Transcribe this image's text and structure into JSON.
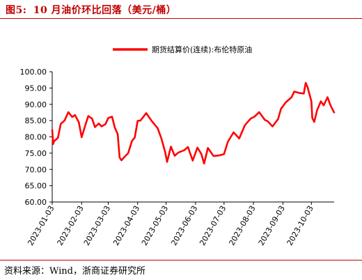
{
  "figure": {
    "label": "图5:",
    "title": "10 月油价环比回落（美元/桶）"
  },
  "source": "资料来源：Wind，浙商证券研究所",
  "colors": {
    "accent": "#c00000",
    "series": "#ff0000"
  },
  "chart_data": {
    "type": "line",
    "legend": {
      "position": "top-right",
      "entries": [
        "期货结算价(连续):布伦特原油"
      ]
    },
    "ylim": [
      60,
      100
    ],
    "yticks": [
      "100.00",
      "95.00",
      "90.00",
      "85.00",
      "80.00",
      "75.00",
      "70.00",
      "65.00",
      "60.00"
    ],
    "xlim": [
      "2023-01-03",
      "2023-10-27"
    ],
    "xticks": [
      "2023-01-03",
      "2023-02-03",
      "2023-03-03",
      "2023-04-03",
      "2023-05-03",
      "2023-06-03",
      "2023-07-03",
      "2023-08-03",
      "2023-09-03",
      "2023-10-03"
    ],
    "grid": false,
    "series": [
      {
        "name": "期货结算价(连续):布伦特原油",
        "x": [
          "2023-01-03",
          "2023-01-04",
          "2023-01-05",
          "2023-01-09",
          "2023-01-12",
          "2023-01-16",
          "2023-01-20",
          "2023-01-24",
          "2023-01-27",
          "2023-01-31",
          "2023-02-03",
          "2023-02-07",
          "2023-02-10",
          "2023-02-14",
          "2023-02-17",
          "2023-02-21",
          "2023-02-24",
          "2023-02-28",
          "2023-03-03",
          "2023-03-07",
          "2023-03-10",
          "2023-03-13",
          "2023-03-15",
          "2023-03-17",
          "2023-03-20",
          "2023-03-24",
          "2023-03-28",
          "2023-03-31",
          "2023-04-03",
          "2023-04-06",
          "2023-04-12",
          "2023-04-18",
          "2023-04-24",
          "2023-04-28",
          "2023-05-02",
          "2023-05-04",
          "2023-05-08",
          "2023-05-12",
          "2023-05-16",
          "2023-05-22",
          "2023-05-26",
          "2023-05-31",
          "2023-06-05",
          "2023-06-09",
          "2023-06-12",
          "2023-06-16",
          "2023-06-22",
          "2023-06-28",
          "2023-07-03",
          "2023-07-07",
          "2023-07-13",
          "2023-07-19",
          "2023-07-25",
          "2023-07-31",
          "2023-08-04",
          "2023-08-09",
          "2023-08-15",
          "2023-08-18",
          "2023-08-23",
          "2023-08-29",
          "2023-09-01",
          "2023-09-06",
          "2023-09-12",
          "2023-09-15",
          "2023-09-20",
          "2023-09-25",
          "2023-09-27",
          "2023-09-29",
          "2023-10-03",
          "2023-10-04",
          "2023-10-06",
          "2023-10-09",
          "2023-10-13",
          "2023-10-16",
          "2023-10-20",
          "2023-10-23",
          "2023-10-26",
          "2023-10-27"
        ],
        "values": [
          82.1,
          77.8,
          78.7,
          79.7,
          84.0,
          85.0,
          87.6,
          86.1,
          86.7,
          84.5,
          79.9,
          83.7,
          86.4,
          85.6,
          83.0,
          84.1,
          83.2,
          83.9,
          85.8,
          86.2,
          82.8,
          80.8,
          73.7,
          72.8,
          73.8,
          75.0,
          78.7,
          79.8,
          84.9,
          85.0,
          87.3,
          84.8,
          82.7,
          79.5,
          75.3,
          72.3,
          77.0,
          74.2,
          75.2,
          75.9,
          76.9,
          72.7,
          76.7,
          74.8,
          71.8,
          76.6,
          74.1,
          74.3,
          74.7,
          78.5,
          81.4,
          79.5,
          83.6,
          85.6,
          86.2,
          87.6,
          85.2,
          84.8,
          83.2,
          85.5,
          88.6,
          90.6,
          92.1,
          93.9,
          93.5,
          93.3,
          96.6,
          95.3,
          90.9,
          85.8,
          84.6,
          88.2,
          90.9,
          89.7,
          92.2,
          89.8,
          88.0,
          87.5
        ]
      }
    ]
  }
}
